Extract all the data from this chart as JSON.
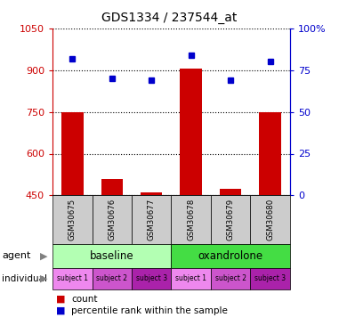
{
  "title": "GDS1334 / 237544_at",
  "samples": [
    "GSM30675",
    "GSM30676",
    "GSM30677",
    "GSM30678",
    "GSM30679",
    "GSM30680"
  ],
  "bar_values": [
    750,
    510,
    460,
    905,
    475,
    750
  ],
  "dot_values_pct": [
    82,
    70,
    69,
    84,
    69,
    80
  ],
  "ylim_left": [
    450,
    1050
  ],
  "ylim_right": [
    0,
    100
  ],
  "yticks_left": [
    450,
    600,
    750,
    900,
    1050
  ],
  "yticks_right": [
    0,
    25,
    50,
    75,
    100
  ],
  "ytick_labels_left": [
    "450",
    "600",
    "750",
    "900",
    "1050"
  ],
  "ytick_labels_right": [
    "0",
    "25",
    "50",
    "75",
    "100%"
  ],
  "bar_color": "#cc0000",
  "dot_color": "#0000cc",
  "agent_colors": [
    "#b3ffb3",
    "#44dd44"
  ],
  "agent_labels": [
    "baseline",
    "oxandrolone"
  ],
  "individual_colors": [
    "#ee88ee",
    "#cc55cc",
    "#aa22aa",
    "#ee88ee",
    "#cc55cc",
    "#aa22aa"
  ],
  "individual_labels": [
    "subject 1",
    "subject 2",
    "subject 3",
    "subject 1",
    "subject 2",
    "subject 3"
  ],
  "gsm_bg_color": "#cccccc",
  "left_axis_color": "#cc0000",
  "right_axis_color": "#0000cc"
}
